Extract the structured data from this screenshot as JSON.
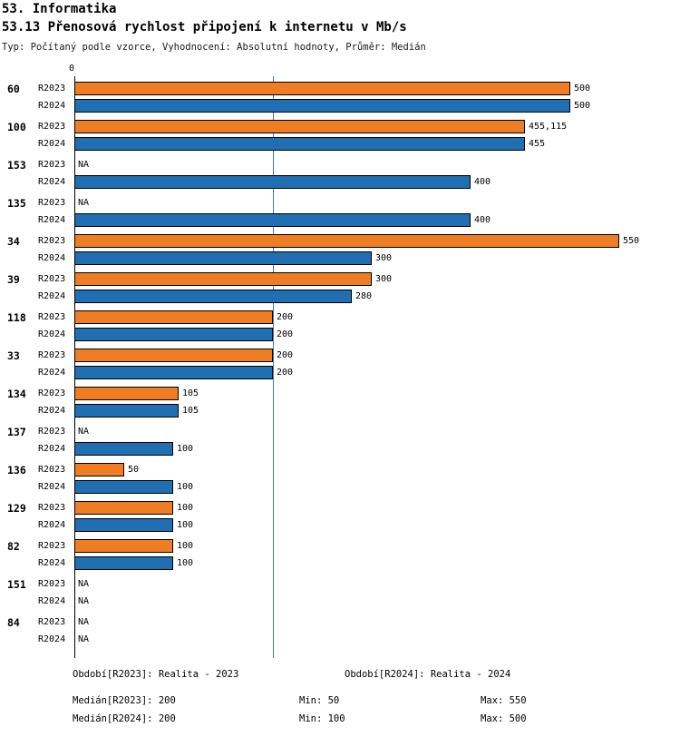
{
  "header": {
    "title_line1": "53. Informatika",
    "title_line2": "53.13 Přenosová rychlost připojení k internetu v Mb/s",
    "subtitle": "Typ: Počítaný podle vzorce, Vyhodnocení: Absolutní hodnoty, Průměr: Medián"
  },
  "chart_data": {
    "type": "bar",
    "orientation": "horizontal",
    "title": "53.13 Přenosová rychlost připojení k internetu v Mb/s",
    "x_axis": {
      "origin_label": "0",
      "min": 0,
      "max_value_shown": 550
    },
    "median_line_value": 200,
    "median_line_color": "#3b78be",
    "series": [
      {
        "name": "R2023",
        "color": "#ef7d23"
      },
      {
        "name": "R2024",
        "color": "#1f6fb2"
      }
    ],
    "categories": [
      "60",
      "100",
      "153",
      "135",
      "34",
      "39",
      "118",
      "33",
      "134",
      "137",
      "136",
      "129",
      "82",
      "151",
      "84"
    ],
    "groups": [
      {
        "id": "60",
        "rows": [
          {
            "series": "R2023",
            "value": 500,
            "label": "500"
          },
          {
            "series": "R2024",
            "value": 500,
            "label": "500"
          }
        ]
      },
      {
        "id": "100",
        "rows": [
          {
            "series": "R2023",
            "value": 455.115,
            "label": "455,115"
          },
          {
            "series": "R2024",
            "value": 455,
            "label": "455"
          }
        ]
      },
      {
        "id": "153",
        "rows": [
          {
            "series": "R2023",
            "value": null,
            "label": "NA"
          },
          {
            "series": "R2024",
            "value": 400,
            "label": "400"
          }
        ]
      },
      {
        "id": "135",
        "rows": [
          {
            "series": "R2023",
            "value": null,
            "label": "NA"
          },
          {
            "series": "R2024",
            "value": 400,
            "label": "400"
          }
        ]
      },
      {
        "id": "34",
        "rows": [
          {
            "series": "R2023",
            "value": 550,
            "label": "550"
          },
          {
            "series": "R2024",
            "value": 300,
            "label": "300"
          }
        ]
      },
      {
        "id": "39",
        "rows": [
          {
            "series": "R2023",
            "value": 300,
            "label": "300"
          },
          {
            "series": "R2024",
            "value": 280,
            "label": "280"
          }
        ]
      },
      {
        "id": "118",
        "rows": [
          {
            "series": "R2023",
            "value": 200,
            "label": "200"
          },
          {
            "series": "R2024",
            "value": 200,
            "label": "200"
          }
        ]
      },
      {
        "id": "33",
        "rows": [
          {
            "series": "R2023",
            "value": 200,
            "label": "200"
          },
          {
            "series": "R2024",
            "value": 200,
            "label": "200"
          }
        ]
      },
      {
        "id": "134",
        "rows": [
          {
            "series": "R2023",
            "value": 105,
            "label": "105"
          },
          {
            "series": "R2024",
            "value": 105,
            "label": "105"
          }
        ]
      },
      {
        "id": "137",
        "rows": [
          {
            "series": "R2023",
            "value": null,
            "label": "NA"
          },
          {
            "series": "R2024",
            "value": 100,
            "label": "100"
          }
        ]
      },
      {
        "id": "136",
        "rows": [
          {
            "series": "R2023",
            "value": 50,
            "label": "50"
          },
          {
            "series": "R2024",
            "value": 100,
            "label": "100"
          }
        ]
      },
      {
        "id": "129",
        "rows": [
          {
            "series": "R2023",
            "value": 100,
            "label": "100"
          },
          {
            "series": "R2024",
            "value": 100,
            "label": "100"
          }
        ]
      },
      {
        "id": "82",
        "rows": [
          {
            "series": "R2023",
            "value": 100,
            "label": "100"
          },
          {
            "series": "R2024",
            "value": 100,
            "label": "100"
          }
        ]
      },
      {
        "id": "151",
        "rows": [
          {
            "series": "R2023",
            "value": null,
            "label": "NA"
          },
          {
            "series": "R2024",
            "value": null,
            "label": "NA"
          }
        ]
      },
      {
        "id": "84",
        "rows": [
          {
            "series": "R2023",
            "value": null,
            "label": "NA"
          },
          {
            "series": "R2024",
            "value": null,
            "label": "NA"
          }
        ]
      }
    ],
    "footer": {
      "period_r2023": "Období[R2023]: Realita - 2023",
      "period_r2024": "Období[R2024]: Realita - 2024",
      "median_r2023": "Medián[R2023]: 200",
      "min_r2023": "Min: 50",
      "max_r2023": "Max: 550",
      "median_r2024": "Medián[R2024]: 200",
      "min_r2024": "Min: 100",
      "max_r2024": "Max: 500"
    }
  }
}
